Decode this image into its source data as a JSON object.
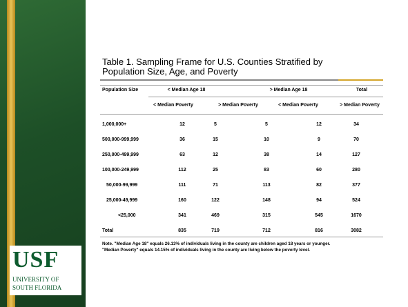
{
  "title": [
    "Table 1. Sampling Frame for U.S. Counties Stratified by",
    "Population Size, Age, and Poverty"
  ],
  "logo": {
    "name": "USF",
    "line1": "UNIVERSITY OF",
    "line2": "SOUTH FLORIDA"
  },
  "table": {
    "header_groups": [
      "Population Size",
      "< Median Age 18",
      "> Median Age 18",
      "Total"
    ],
    "header": [
      "< Median Poverty",
      "> Median Poverty",
      "< Median Poverty",
      "> Median Poverty"
    ],
    "rows": [
      [
        "1,000,000+",
        "12",
        "5",
        "5",
        "12",
        "34"
      ],
      [
        "500,000-999,999",
        "36",
        "15",
        "10",
        "9",
        "70"
      ],
      [
        "250,000-499,999",
        "63",
        "12",
        "38",
        "14",
        "127"
      ],
      [
        "100,000-249,999",
        "112",
        "25",
        "83",
        "60",
        "280"
      ],
      [
        "50,000-99,999",
        "111",
        "71",
        "113",
        "82",
        "377"
      ],
      [
        "25,000-49,999",
        "160",
        "122",
        "148",
        "94",
        "524"
      ],
      [
        "<25,000",
        "341",
        "469",
        "315",
        "545",
        "1670"
      ],
      [
        "Total",
        "835",
        "719",
        "712",
        "816",
        "3082"
      ]
    ]
  },
  "note": [
    "Note. \"Median Age 18\" equals 26.13% of individuals living in the county are children aged 18 years or younger.",
    "\"Median Poverty\" equals 14.15% of individuals living in the county are living below the poverty level."
  ]
}
